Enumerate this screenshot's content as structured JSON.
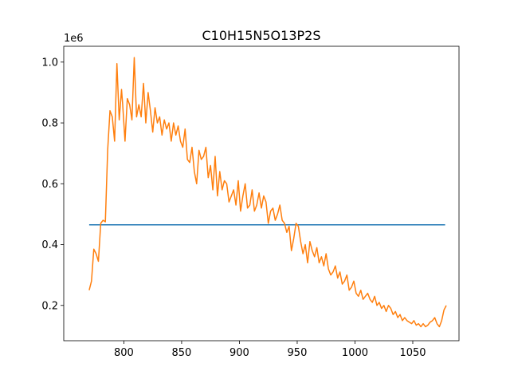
{
  "chart_data": {
    "type": "line",
    "title": "C10H15N5O13P2S",
    "xlabel": "",
    "ylabel": "",
    "y_offset_label": "1e6",
    "xlim": [
      748,
      1090
    ],
    "ylim": [
      84000,
      1052000
    ],
    "xticks": [
      800,
      850,
      900,
      950,
      1000,
      1050
    ],
    "yticks": [
      200000,
      400000,
      600000,
      800000,
      1000000
    ],
    "xtick_labels": [
      "800",
      "850",
      "900",
      "950",
      "1000",
      "1050"
    ],
    "ytick_labels": [
      "0.2",
      "0.4",
      "0.6",
      "0.8",
      "1.0"
    ],
    "grid": false,
    "legend": "none",
    "series": [
      {
        "color": "#1f77b4",
        "x": [
          770,
          1078
        ],
        "y": [
          465000,
          465000
        ]
      },
      {
        "color": "#ff7f0e",
        "x": [
          770,
          772,
          774,
          776,
          778,
          780,
          782,
          784,
          786,
          788,
          790,
          792,
          794,
          796,
          798,
          799,
          801,
          803,
          805,
          807,
          809,
          811,
          813,
          815,
          817,
          819,
          821,
          823,
          825,
          827,
          829,
          831,
          833,
          835,
          837,
          839,
          841,
          843,
          845,
          847,
          849,
          851,
          853,
          855,
          857,
          859,
          861,
          863,
          865,
          867,
          869,
          871,
          873,
          875,
          877,
          879,
          881,
          883,
          885,
          887,
          889,
          891,
          893,
          895,
          897,
          899,
          901,
          903,
          905,
          907,
          909,
          911,
          913,
          915,
          917,
          919,
          921,
          923,
          925,
          927,
          929,
          931,
          933,
          935,
          937,
          939,
          941,
          943,
          945,
          947,
          949,
          951,
          953,
          955,
          957,
          959,
          961,
          963,
          965,
          967,
          969,
          971,
          973,
          975,
          977,
          979,
          981,
          983,
          985,
          987,
          989,
          991,
          993,
          995,
          997,
          999,
          1001,
          1003,
          1005,
          1007,
          1009,
          1011,
          1013,
          1015,
          1017,
          1019,
          1021,
          1023,
          1025,
          1027,
          1029,
          1031,
          1033,
          1035,
          1037,
          1039,
          1041,
          1043,
          1045,
          1047,
          1049,
          1051,
          1053,
          1055,
          1057,
          1059,
          1061,
          1063,
          1065,
          1067,
          1069,
          1071,
          1073,
          1075,
          1077,
          1079
        ],
        "y": [
          250000,
          280000,
          385000,
          370000,
          345000,
          470000,
          480000,
          475000,
          710000,
          840000,
          820000,
          740000,
          995000,
          810000,
          910000,
          860000,
          740000,
          880000,
          860000,
          810000,
          1015000,
          820000,
          860000,
          820000,
          930000,
          800000,
          900000,
          840000,
          770000,
          850000,
          800000,
          820000,
          760000,
          810000,
          780000,
          800000,
          740000,
          800000,
          760000,
          790000,
          740000,
          720000,
          780000,
          680000,
          670000,
          720000,
          640000,
          600000,
          710000,
          680000,
          690000,
          720000,
          620000,
          660000,
          580000,
          690000,
          560000,
          640000,
          580000,
          610000,
          600000,
          540000,
          560000,
          580000,
          530000,
          610000,
          510000,
          560000,
          600000,
          520000,
          530000,
          580000,
          510000,
          530000,
          570000,
          520000,
          560000,
          540000,
          470000,
          510000,
          520000,
          480000,
          500000,
          530000,
          480000,
          470000,
          440000,
          460000,
          380000,
          420000,
          470000,
          460000,
          410000,
          370000,
          400000,
          340000,
          410000,
          380000,
          360000,
          390000,
          340000,
          360000,
          330000,
          370000,
          320000,
          300000,
          310000,
          330000,
          290000,
          310000,
          270000,
          280000,
          300000,
          250000,
          260000,
          280000,
          240000,
          230000,
          250000,
          220000,
          230000,
          240000,
          220000,
          210000,
          230000,
          200000,
          210000,
          190000,
          200000,
          180000,
          200000,
          190000,
          170000,
          180000,
          160000,
          170000,
          150000,
          160000,
          150000,
          145000,
          140000,
          150000,
          135000,
          140000,
          130000,
          140000,
          130000,
          135000,
          145000,
          150000,
          160000,
          140000,
          130000,
          150000,
          185000,
          200000
        ]
      }
    ]
  }
}
